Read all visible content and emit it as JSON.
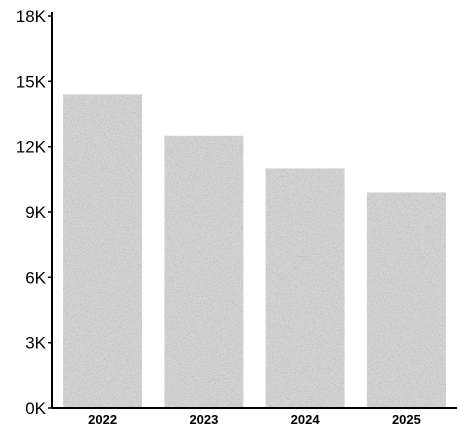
{
  "chart_data": {
    "type": "bar",
    "categories": [
      "2022",
      "2023",
      "2024",
      "2025"
    ],
    "values": [
      14400,
      12500,
      11000,
      9900
    ],
    "ylim": [
      0,
      18000
    ],
    "yticks": [
      0,
      3000,
      6000,
      9000,
      12000,
      15000,
      18000
    ],
    "ytick_labels": [
      "0K",
      "3K",
      "6K",
      "9K",
      "12K",
      "15K",
      "18K"
    ],
    "title": "",
    "xlabel": "",
    "ylabel": "",
    "grid": false,
    "legend": "none",
    "colors": {
      "bar": "#d4d4d4",
      "axis": "#000000",
      "text": "#000000"
    }
  }
}
